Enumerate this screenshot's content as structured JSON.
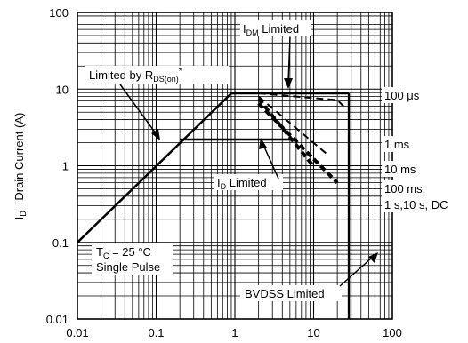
{
  "chart_data": {
    "type": "line",
    "xscale": "log",
    "yscale": "log",
    "xlim": [
      0.01,
      100
    ],
    "ylim": [
      0.01,
      100
    ],
    "grid": true,
    "ylabel": {
      "pre": "I",
      "sub": "D",
      "post": " - Drain Current (A)"
    },
    "xlabel": "",
    "x_ticks": [
      {
        "v": 0.01,
        "label": "0.01"
      },
      {
        "v": 0.1,
        "label": "0.1"
      },
      {
        "v": 1,
        "label": "1"
      },
      {
        "v": 10,
        "label": "10"
      },
      {
        "v": 100,
        "label": "100"
      }
    ],
    "y_ticks": [
      {
        "v": 0.01,
        "label": "0.01"
      },
      {
        "v": 0.1,
        "label": "0.1"
      },
      {
        "v": 1,
        "label": "1"
      },
      {
        "v": 10,
        "label": "10"
      },
      {
        "v": 100,
        "label": "100"
      }
    ],
    "series": [
      {
        "key": "rds-limit",
        "style": "solid",
        "width": 2.5,
        "points": [
          [
            0.01,
            0.1
          ],
          [
            0.9,
            8.8
          ]
        ]
      },
      {
        "key": "top-limit",
        "style": "solid",
        "width": 2.5,
        "points": [
          [
            0.9,
            8.8
          ],
          [
            28,
            8.8
          ]
        ]
      },
      {
        "key": "id-limit",
        "style": "solid",
        "width": 2.5,
        "points": [
          [
            0.2,
            2.2
          ],
          [
            6.2,
            2.2
          ]
        ]
      },
      {
        "key": "bvdss-limit",
        "style": "solid",
        "width": 2.5,
        "points": [
          [
            28,
            0.01
          ],
          [
            28,
            8.8
          ]
        ]
      },
      {
        "key": "pulse-100us",
        "style": "dash",
        "width": 2,
        "points": [
          [
            2,
            8.8
          ],
          [
            20,
            7.2
          ],
          [
            24,
            6.0
          ],
          [
            26,
            5.5
          ]
        ]
      },
      {
        "key": "pulse-1ms",
        "style": "dash",
        "width": 2,
        "points": [
          [
            2,
            8.0
          ],
          [
            15,
            1.4
          ]
        ]
      },
      {
        "key": "pulse-10ms",
        "style": "dash",
        "width": 4,
        "points": [
          [
            2,
            7.5
          ],
          [
            10,
            0.98
          ]
        ]
      },
      {
        "key": "pulse-100ms",
        "style": "dash",
        "width": 4,
        "points": [
          [
            2,
            6.5
          ],
          [
            20,
            0.6
          ]
        ]
      }
    ],
    "annotations": {
      "idm": {
        "pre": "I",
        "sub": "DM",
        "post": " Limited"
      },
      "rds": {
        "pre": "Limited by R",
        "sub": "DS(on)",
        "post": "*"
      },
      "id": {
        "pre": "I",
        "sub": "D",
        "post": " Limited"
      },
      "t100us": "100 μs",
      "t1ms": "1 ms",
      "t10ms": "10 ms",
      "t100ms_line1": "100 ms,",
      "t100ms_line2": "1 s,10 s, DC",
      "tc": {
        "pre": "T",
        "sub": "C",
        "post": " = 25 °C"
      },
      "single": "Single Pulse",
      "bvdss": "BVDSS Limited"
    }
  }
}
